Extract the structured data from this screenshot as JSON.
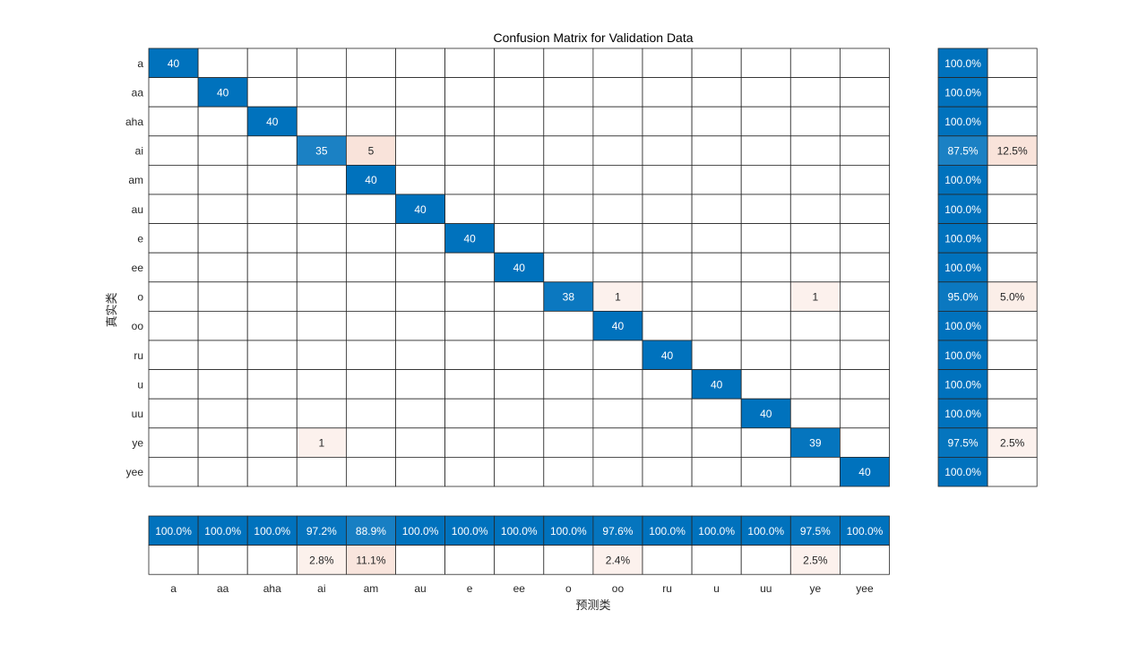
{
  "chart_data": {
    "type": "heatmap",
    "title": "Confusion Matrix for Validation Data",
    "xlabel": "预测类",
    "ylabel": "真实类",
    "classes": [
      "a",
      "aa",
      "aha",
      "ai",
      "am",
      "au",
      "e",
      "ee",
      "o",
      "oo",
      "ru",
      "u",
      "uu",
      "ye",
      "yee"
    ],
    "matrix": [
      [
        40,
        0,
        0,
        0,
        0,
        0,
        0,
        0,
        0,
        0,
        0,
        0,
        0,
        0,
        0
      ],
      [
        0,
        40,
        0,
        0,
        0,
        0,
        0,
        0,
        0,
        0,
        0,
        0,
        0,
        0,
        0
      ],
      [
        0,
        0,
        40,
        0,
        0,
        0,
        0,
        0,
        0,
        0,
        0,
        0,
        0,
        0,
        0
      ],
      [
        0,
        0,
        0,
        35,
        5,
        0,
        0,
        0,
        0,
        0,
        0,
        0,
        0,
        0,
        0
      ],
      [
        0,
        0,
        0,
        0,
        40,
        0,
        0,
        0,
        0,
        0,
        0,
        0,
        0,
        0,
        0
      ],
      [
        0,
        0,
        0,
        0,
        0,
        40,
        0,
        0,
        0,
        0,
        0,
        0,
        0,
        0,
        0
      ],
      [
        0,
        0,
        0,
        0,
        0,
        0,
        40,
        0,
        0,
        0,
        0,
        0,
        0,
        0,
        0
      ],
      [
        0,
        0,
        0,
        0,
        0,
        0,
        0,
        40,
        0,
        0,
        0,
        0,
        0,
        0,
        0
      ],
      [
        0,
        0,
        0,
        0,
        0,
        0,
        0,
        0,
        38,
        1,
        0,
        0,
        0,
        1,
        0
      ],
      [
        0,
        0,
        0,
        0,
        0,
        0,
        0,
        0,
        0,
        40,
        0,
        0,
        0,
        0,
        0
      ],
      [
        0,
        0,
        0,
        0,
        0,
        0,
        0,
        0,
        0,
        0,
        40,
        0,
        0,
        0,
        0
      ],
      [
        0,
        0,
        0,
        0,
        0,
        0,
        0,
        0,
        0,
        0,
        0,
        40,
        0,
        0,
        0
      ],
      [
        0,
        0,
        0,
        0,
        0,
        0,
        0,
        0,
        0,
        0,
        0,
        0,
        40,
        0,
        0
      ],
      [
        0,
        0,
        0,
        1,
        0,
        0,
        0,
        0,
        0,
        0,
        0,
        0,
        0,
        39,
        0
      ],
      [
        0,
        0,
        0,
        0,
        0,
        0,
        0,
        0,
        0,
        0,
        0,
        0,
        0,
        0,
        40
      ]
    ],
    "row_summary": {
      "correct": [
        "100.0%",
        "100.0%",
        "100.0%",
        "87.5%",
        "100.0%",
        "100.0%",
        "100.0%",
        "100.0%",
        "95.0%",
        "100.0%",
        "100.0%",
        "100.0%",
        "100.0%",
        "97.5%",
        "100.0%"
      ],
      "incorrect": [
        "",
        "",
        "",
        "12.5%",
        "",
        "",
        "",
        "",
        "5.0%",
        "",
        "",
        "",
        "",
        "2.5%",
        ""
      ]
    },
    "column_summary": {
      "correct": [
        "100.0%",
        "100.0%",
        "100.0%",
        "97.2%",
        "88.9%",
        "100.0%",
        "100.0%",
        "100.0%",
        "100.0%",
        "97.6%",
        "100.0%",
        "100.0%",
        "100.0%",
        "97.5%",
        "100.0%"
      ],
      "incorrect": [
        "",
        "",
        "",
        "2.8%",
        "11.1%",
        "",
        "",
        "",
        "",
        "2.4%",
        "",
        "",
        "",
        "2.5%",
        ""
      ]
    },
    "grid": true,
    "colors": {
      "correct": "#0072BD",
      "incorrect": "#D95319",
      "grid": "#262626",
      "text_dark": "#262626",
      "text_light": "#ffffff"
    }
  }
}
